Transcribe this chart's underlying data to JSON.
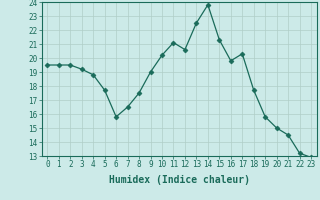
{
  "x": [
    0,
    1,
    2,
    3,
    4,
    5,
    6,
    7,
    8,
    9,
    10,
    11,
    12,
    13,
    14,
    15,
    16,
    17,
    18,
    19,
    20,
    21,
    22,
    23
  ],
  "y": [
    19.5,
    19.5,
    19.5,
    19.2,
    18.8,
    17.7,
    15.8,
    16.5,
    17.5,
    19.0,
    20.2,
    21.1,
    20.6,
    22.5,
    23.8,
    21.3,
    19.8,
    20.3,
    17.7,
    15.8,
    15.0,
    14.5,
    13.2,
    12.9
  ],
  "line_color": "#1a6b5a",
  "marker": "D",
  "marker_size": 2.5,
  "bg_color": "#cceae8",
  "grid_color": "#b0cec8",
  "xlabel": "Humidex (Indice chaleur)",
  "ylim": [
    13,
    24
  ],
  "xlim": [
    -0.5,
    23.5
  ],
  "yticks": [
    13,
    14,
    15,
    16,
    17,
    18,
    19,
    20,
    21,
    22,
    23,
    24
  ],
  "xticks": [
    0,
    1,
    2,
    3,
    4,
    5,
    6,
    7,
    8,
    9,
    10,
    11,
    12,
    13,
    14,
    15,
    16,
    17,
    18,
    19,
    20,
    21,
    22,
    23
  ],
  "label_color": "#1a6b5a",
  "tick_color": "#1a6b5a",
  "spine_color": "#1a6b5a",
  "tick_fontsize": 5.5,
  "xlabel_fontsize": 7.0
}
